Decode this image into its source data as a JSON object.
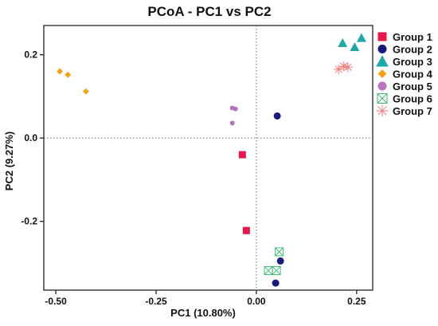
{
  "chart_data": {
    "type": "scatter",
    "title": "PCoA - PC1 vs PC2",
    "xlabel": "PC1 (10.80%)",
    "ylabel": "PC2 (9.27%)",
    "xlim": [
      -0.53,
      0.29
    ],
    "ylim": [
      -0.365,
      0.27
    ],
    "xticks": [
      -0.5,
      -0.25,
      0.0,
      0.25
    ],
    "xtick_labels": [
      "-0.50",
      "-0.25",
      "0.00",
      "0.25"
    ],
    "yticks": [
      -0.2,
      0.0,
      0.2
    ],
    "ytick_labels": [
      "-0.2",
      "0.0",
      "0.2"
    ],
    "grid": false,
    "reference_lines": {
      "x": 0,
      "y": 0,
      "style": "dotted"
    },
    "legend_position": "right",
    "series": [
      {
        "name": "Group 1",
        "marker": "square",
        "color": "#E8174B",
        "points": [
          {
            "x": -0.035,
            "y": -0.04
          },
          {
            "x": -0.025,
            "y": -0.222
          }
        ]
      },
      {
        "name": "Group 2",
        "marker": "circle",
        "color": "#1A1A7A",
        "points": [
          {
            "x": 0.052,
            "y": 0.053
          },
          {
            "x": 0.06,
            "y": -0.295
          },
          {
            "x": 0.048,
            "y": -0.348
          }
        ]
      },
      {
        "name": "Group 3",
        "marker": "triangle",
        "color": "#20A8A8",
        "points": [
          {
            "x": 0.215,
            "y": 0.228
          },
          {
            "x": 0.245,
            "y": 0.218
          },
          {
            "x": 0.262,
            "y": 0.24
          }
        ]
      },
      {
        "name": "Group 4",
        "marker": "diamond",
        "color": "#F0A318",
        "points": [
          {
            "x": -0.49,
            "y": 0.16
          },
          {
            "x": -0.47,
            "y": 0.152
          },
          {
            "x": -0.425,
            "y": 0.112
          }
        ]
      },
      {
        "name": "Group 5",
        "marker": "circle",
        "color": "#B873C0",
        "points": [
          {
            "x": -0.06,
            "y": 0.072
          },
          {
            "x": -0.052,
            "y": 0.07
          },
          {
            "x": -0.06,
            "y": 0.036
          }
        ]
      },
      {
        "name": "Group 6",
        "marker": "square-x",
        "color": "#3DBE6E",
        "points": [
          {
            "x": 0.057,
            "y": -0.273
          },
          {
            "x": 0.03,
            "y": -0.318
          },
          {
            "x": 0.05,
            "y": -0.318
          }
        ]
      },
      {
        "name": "Group 7",
        "marker": "asterisk",
        "color": "#EE7A7A",
        "points": [
          {
            "x": 0.205,
            "y": 0.165
          },
          {
            "x": 0.218,
            "y": 0.172
          },
          {
            "x": 0.228,
            "y": 0.17
          }
        ]
      }
    ]
  }
}
